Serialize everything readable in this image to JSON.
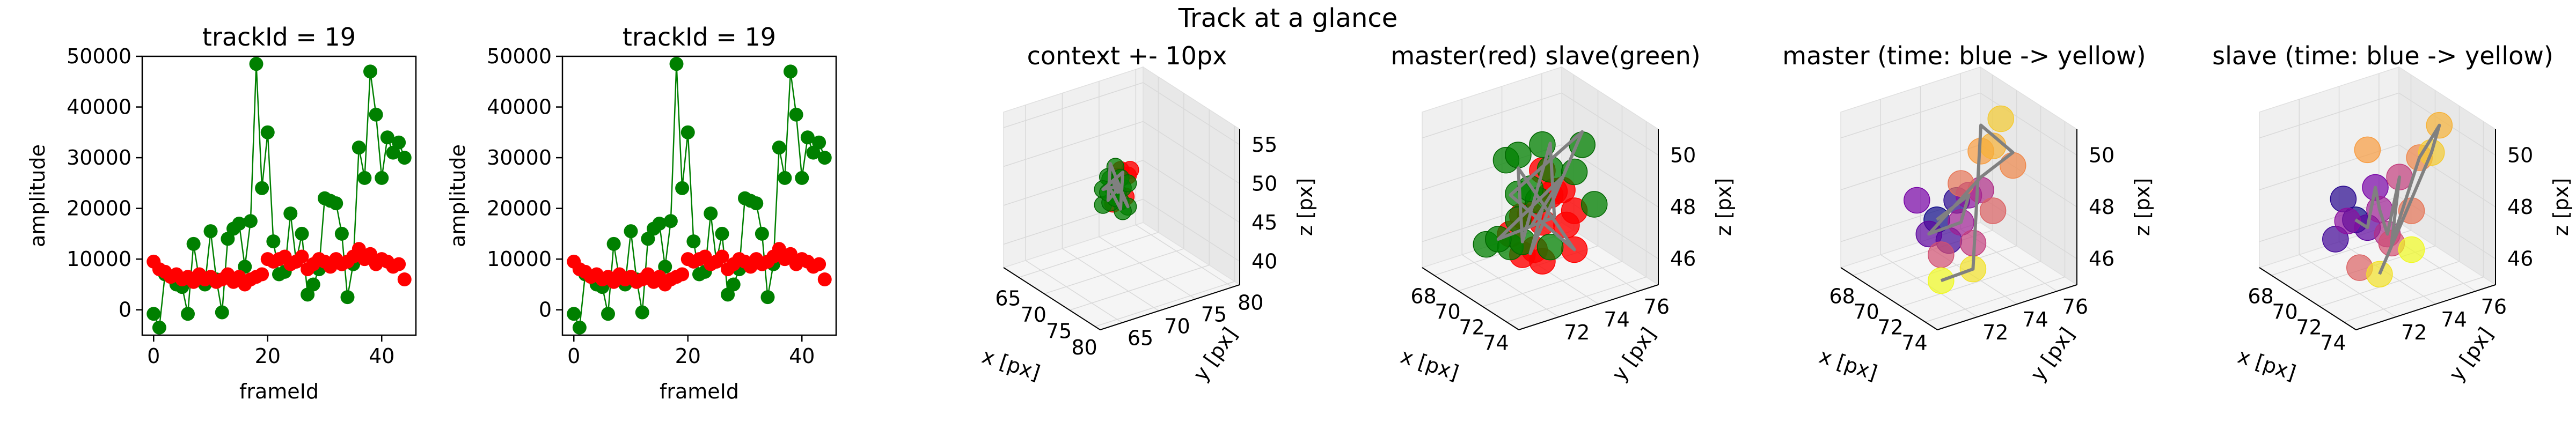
{
  "suptitle": "Track at a glance",
  "colors": {
    "master": "#ff0000",
    "slave": "#008000",
    "trajectory_line": "#808080",
    "axes_edge": "#000000",
    "pane_fill": "#f2f2f2",
    "grid": "#d9d9d9",
    "plasma_start": "#0d0887",
    "plasma_mid": "#cc4778",
    "plasma_end": "#f0f921"
  },
  "chart_data": [
    {
      "type": "scatter",
      "title": "trackId = 19",
      "xlabel": "frameId",
      "ylabel": "amplitude",
      "xlim": [
        -2,
        46
      ],
      "ylim": [
        -5000,
        50000
      ],
      "xticks": [
        "0",
        "20",
        "40"
      ],
      "yticks": [
        "0",
        "10000",
        "20000",
        "30000",
        "40000",
        "50000"
      ],
      "grid": false,
      "series": [
        {
          "color": "#008000",
          "connected": true,
          "x": [
            0,
            1,
            2,
            3,
            4,
            5,
            6,
            7,
            8,
            9,
            10,
            11,
            12,
            13,
            14,
            15,
            16,
            17,
            18,
            19,
            20,
            21,
            22,
            23,
            24,
            25,
            26,
            27,
            28,
            29,
            30,
            31,
            32,
            33,
            34,
            35,
            36,
            37,
            38,
            39,
            40,
            41,
            42,
            43,
            44
          ],
          "y": [
            -800,
            -3500,
            7000,
            6500,
            5000,
            4500,
            -800,
            13000,
            6000,
            5000,
            15500,
            6000,
            -500,
            14000,
            16000,
            17000,
            8500,
            17500,
            48500,
            24000,
            35000,
            13500,
            7000,
            7500,
            19000,
            9500,
            15000,
            3000,
            5000,
            8000,
            22000,
            21500,
            21000,
            15000,
            2500,
            9000,
            32000,
            26000,
            47000,
            38500,
            26000,
            34000,
            31000,
            33000,
            30000
          ]
        },
        {
          "color": "#ff0000",
          "connected": false,
          "x": [
            0,
            1,
            2,
            3,
            4,
            5,
            6,
            7,
            8,
            9,
            10,
            11,
            12,
            13,
            14,
            15,
            16,
            17,
            18,
            19,
            20,
            21,
            22,
            23,
            24,
            25,
            26,
            27,
            28,
            29,
            30,
            31,
            32,
            33,
            34,
            35,
            36,
            37,
            38,
            39,
            40,
            41,
            42,
            43,
            44
          ],
          "y": [
            9500,
            8000,
            7500,
            6500,
            7000,
            6000,
            6500,
            5500,
            7000,
            6000,
            6500,
            5500,
            6000,
            7000,
            5500,
            6500,
            5000,
            6000,
            6500,
            7000,
            10000,
            9500,
            10000,
            10500,
            9000,
            9500,
            10500,
            8000,
            9000,
            10000,
            9500,
            8500,
            10000,
            9000,
            9500,
            10500,
            12000,
            10000,
            11000,
            9000,
            10000,
            9500,
            8500,
            9000,
            6000
          ]
        }
      ]
    },
    {
      "type": "scatter",
      "title": "trackId = 19",
      "xlabel": "frameId",
      "ylabel": "amplitude",
      "xlim": [
        -2,
        46
      ],
      "ylim": [
        -5000,
        50000
      ],
      "xticks": [
        "0",
        "20",
        "40"
      ],
      "yticks": [
        "0",
        "10000",
        "20000",
        "30000",
        "40000",
        "50000"
      ],
      "grid": false,
      "series": [
        {
          "color": "#008000",
          "connected": true,
          "x": [
            0,
            1,
            2,
            3,
            4,
            5,
            6,
            7,
            8,
            9,
            10,
            11,
            12,
            13,
            14,
            15,
            16,
            17,
            18,
            19,
            20,
            21,
            22,
            23,
            24,
            25,
            26,
            27,
            28,
            29,
            30,
            31,
            32,
            33,
            34,
            35,
            36,
            37,
            38,
            39,
            40,
            41,
            42,
            43,
            44
          ],
          "y": [
            -800,
            -3500,
            7000,
            6500,
            5000,
            4500,
            -800,
            13000,
            6000,
            5000,
            15500,
            6000,
            -500,
            14000,
            16000,
            17000,
            8500,
            17500,
            48500,
            24000,
            35000,
            13500,
            7000,
            7500,
            19000,
            9500,
            15000,
            3000,
            5000,
            8000,
            22000,
            21500,
            21000,
            15000,
            2500,
            9000,
            32000,
            26000,
            47000,
            38500,
            26000,
            34000,
            31000,
            33000,
            30000
          ]
        },
        {
          "color": "#ff0000",
          "connected": false,
          "x": [
            0,
            1,
            2,
            3,
            4,
            5,
            6,
            7,
            8,
            9,
            10,
            11,
            12,
            13,
            14,
            15,
            16,
            17,
            18,
            19,
            20,
            21,
            22,
            23,
            24,
            25,
            26,
            27,
            28,
            29,
            30,
            31,
            32,
            33,
            34,
            35,
            36,
            37,
            38,
            39,
            40,
            41,
            42,
            43,
            44
          ],
          "y": [
            9500,
            8000,
            7500,
            6500,
            7000,
            6000,
            6500,
            5500,
            7000,
            6000,
            6500,
            5500,
            6000,
            7000,
            5500,
            6500,
            5000,
            6000,
            6500,
            7000,
            10000,
            9500,
            10000,
            10500,
            9000,
            9500,
            10500,
            8000,
            9000,
            10000,
            9500,
            8500,
            10000,
            9000,
            9500,
            10500,
            12000,
            10000,
            11000,
            9000,
            10000,
            9500,
            8500,
            9000,
            6000
          ]
        }
      ]
    },
    {
      "type": "scatter3d",
      "title": "context +- 10px",
      "xlabel": "x [px]",
      "ylabel": "y [px]",
      "zlabel": "z [px]",
      "xlim": [
        62,
        81
      ],
      "ylim": [
        62,
        81
      ],
      "zlim": [
        37,
        57
      ],
      "xticks": [
        65,
        70,
        75,
        80
      ],
      "yticks": [
        65,
        70,
        75,
        80
      ],
      "zticks": [
        40,
        45,
        50,
        55
      ],
      "points_master": [
        [
          71,
          71,
          48
        ],
        [
          72,
          72,
          50
        ],
        [
          70,
          72,
          49
        ],
        [
          73,
          71,
          48
        ],
        [
          72,
          70,
          47
        ],
        [
          71,
          73,
          50
        ],
        [
          72,
          71,
          51
        ]
      ],
      "points_slave": [
        [
          70,
          70,
          46
        ],
        [
          71,
          72,
          48
        ],
        [
          72,
          71,
          47
        ],
        [
          70,
          71,
          49
        ],
        [
          71,
          70,
          50
        ],
        [
          72,
          72,
          46
        ],
        [
          70,
          72,
          47
        ],
        [
          71,
          71,
          51
        ],
        [
          72,
          70,
          49
        ],
        [
          70,
          70,
          48
        ],
        [
          71,
          72,
          45
        ],
        [
          72,
          71,
          50
        ],
        [
          70,
          71,
          46
        ],
        [
          71,
          70,
          48
        ],
        [
          72,
          72,
          49
        ],
        [
          71,
          71,
          47
        ]
      ],
      "track": [
        [
          71,
          71,
          48
        ],
        [
          72,
          70,
          50
        ],
        [
          70,
          72,
          47
        ],
        [
          71,
          71,
          49
        ],
        [
          72,
          72,
          46
        ],
        [
          70,
          71,
          51
        ],
        [
          71,
          70,
          47
        ],
        [
          72,
          71,
          49
        ],
        [
          70,
          70,
          48
        ],
        [
          71,
          72,
          50
        ],
        [
          72,
          71,
          46
        ],
        [
          71,
          70,
          49
        ]
      ]
    },
    {
      "type": "scatter3d",
      "title": "master(red) slave(green)",
      "xlabel": "x [px]",
      "ylabel": "y [px]",
      "zlabel": "z [px]",
      "xlim": [
        67,
        75
      ],
      "ylim": [
        70,
        77
      ],
      "zlim": [
        45,
        51
      ],
      "xticks": [
        68,
        70,
        72,
        74
      ],
      "yticks": [
        72,
        74,
        76
      ],
      "zticks": [
        46,
        48,
        50
      ],
      "points_master": [
        [
          72,
          73,
          47.5
        ],
        [
          73,
          74,
          48
        ],
        [
          71,
          72,
          47
        ],
        [
          72,
          72,
          46.5
        ],
        [
          73,
          73,
          49
        ],
        [
          72,
          74,
          48.5
        ],
        [
          71,
          73,
          47.5
        ],
        [
          74,
          73,
          48
        ],
        [
          72,
          73,
          49.5
        ],
        [
          73,
          72,
          47
        ],
        [
          71,
          74,
          48
        ],
        [
          72,
          72,
          48
        ],
        [
          73,
          74,
          46.5
        ],
        [
          72,
          73,
          46
        ]
      ],
      "points_slave": [
        [
          70,
          73,
          47
        ],
        [
          71,
          74,
          49
        ],
        [
          69,
          72,
          46
        ],
        [
          72,
          75,
          50
        ],
        [
          70,
          73,
          48
        ],
        [
          71,
          72,
          46.5
        ],
        [
          73,
          74,
          49.5
        ],
        [
          70,
          74,
          47.5
        ],
        [
          71,
          73,
          48.5
        ],
        [
          72,
          72,
          47
        ],
        [
          69,
          73,
          49
        ],
        [
          70,
          72,
          46.5
        ],
        [
          73,
          75,
          48
        ],
        [
          71,
          74,
          46
        ],
        [
          72,
          73,
          50.5
        ],
        [
          70,
          73,
          49.5
        ]
      ],
      "track": [
        [
          71,
          73,
          47
        ],
        [
          72,
          74,
          49
        ],
        [
          70,
          72,
          46.5
        ],
        [
          73,
          73,
          48
        ],
        [
          71,
          74,
          50
        ],
        [
          72,
          72,
          47
        ],
        [
          70,
          73,
          49
        ],
        [
          73,
          74,
          46.5
        ],
        [
          71,
          72,
          48.5
        ],
        [
          72,
          75,
          50.5
        ],
        [
          71,
          73,
          46
        ],
        [
          72,
          73,
          48
        ]
      ]
    },
    {
      "type": "scatter3d",
      "title": "master (time: blue -> yellow)",
      "xlabel": "x [px]",
      "ylabel": "y [px]",
      "zlabel": "z [px]",
      "xlim": [
        67,
        75
      ],
      "ylim": [
        70,
        77
      ],
      "zlim": [
        45,
        51
      ],
      "xticks": [
        68,
        70,
        72,
        74
      ],
      "yticks": [
        72,
        74,
        76
      ],
      "zticks": [
        46,
        48,
        50
      ],
      "colormap": "plasma",
      "points": [
        [
          70,
          73,
          47
        ],
        [
          70,
          74,
          47.5
        ],
        [
          71,
          73,
          46.5
        ],
        [
          71,
          72,
          47
        ],
        [
          70,
          72,
          48
        ],
        [
          71,
          74,
          48
        ],
        [
          72,
          73,
          47.5
        ],
        [
          72,
          74,
          48.5
        ],
        [
          73,
          73,
          47
        ],
        [
          72,
          72,
          46.5
        ],
        [
          73,
          74,
          48
        ],
        [
          72,
          73,
          49
        ],
        [
          73,
          75,
          49.5
        ],
        [
          72,
          74,
          50
        ],
        [
          73,
          74,
          50.5
        ],
        [
          72,
          75,
          51
        ],
        [
          73,
          73,
          46
        ],
        [
          72,
          72,
          45.5
        ]
      ],
      "track": [
        [
          70,
          73,
          47
        ],
        [
          71,
          74,
          48
        ],
        [
          72,
          73,
          47.5
        ],
        [
          71,
          72,
          47
        ],
        [
          72,
          74,
          49
        ],
        [
          73,
          75,
          50
        ],
        [
          72,
          74,
          51
        ],
        [
          73,
          73,
          46
        ],
        [
          72,
          72,
          45.5
        ]
      ]
    },
    {
      "type": "scatter3d",
      "title": "slave (time: blue -> yellow)",
      "xlabel": "x [px]",
      "ylabel": "y [px]",
      "zlabel": "z [px]",
      "xlim": [
        67,
        75
      ],
      "ylim": [
        70,
        77
      ],
      "zlim": [
        45,
        51
      ],
      "xticks": [
        68,
        70,
        72,
        74
      ],
      "yticks": [
        72,
        74,
        76
      ],
      "zticks": [
        46,
        48,
        50
      ],
      "colormap": "plasma",
      "points": [
        [
          70,
          73,
          47
        ],
        [
          69,
          73,
          47.5
        ],
        [
          70,
          72,
          46.5
        ],
        [
          71,
          73,
          47
        ],
        [
          70,
          74,
          48
        ],
        [
          71,
          72,
          47.5
        ],
        [
          72,
          73,
          48
        ],
        [
          71,
          74,
          46.5
        ],
        [
          72,
          74,
          49
        ],
        [
          73,
          73,
          47
        ],
        [
          72,
          72,
          46
        ],
        [
          73,
          74,
          48
        ],
        [
          72,
          75,
          49.5
        ],
        [
          71,
          73,
          50
        ],
        [
          72,
          76,
          50.5
        ],
        [
          73,
          75,
          50
        ],
        [
          72,
          73,
          45.5
        ],
        [
          73,
          74,
          46.5
        ]
      ],
      "track": [
        [
          70,
          73,
          47
        ],
        [
          71,
          73,
          47
        ],
        [
          70,
          74,
          48
        ],
        [
          72,
          73,
          48
        ],
        [
          71,
          74,
          46.5
        ],
        [
          72,
          74,
          49
        ],
        [
          73,
          73,
          47
        ],
        [
          72,
          75,
          49.5
        ],
        [
          72,
          76,
          50.5
        ],
        [
          73,
          75,
          50
        ],
        [
          72,
          73,
          45.5
        ]
      ]
    }
  ]
}
